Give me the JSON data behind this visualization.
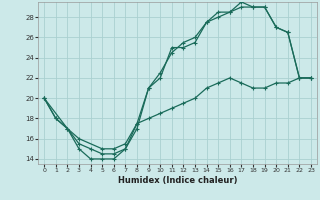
{
  "xlabel": "Humidex (Indice chaleur)",
  "bg_color": "#cce9e9",
  "grid_color": "#aad0d0",
  "line_color": "#1a6b5a",
  "xlim": [
    -0.5,
    23.5
  ],
  "ylim": [
    13.5,
    29.5
  ],
  "xticks": [
    0,
    1,
    2,
    3,
    4,
    5,
    6,
    7,
    8,
    9,
    10,
    11,
    12,
    13,
    14,
    15,
    16,
    17,
    18,
    19,
    20,
    21,
    22,
    23
  ],
  "yticks": [
    14,
    16,
    18,
    20,
    22,
    24,
    26,
    28
  ],
  "curve1_x": [
    0,
    1,
    2,
    3,
    4,
    5,
    6,
    7,
    8,
    9,
    10,
    11,
    12,
    13,
    14,
    15,
    16,
    17,
    18,
    19,
    20,
    21,
    22,
    23
  ],
  "curve1_y": [
    20,
    18,
    17,
    15,
    14,
    14,
    14,
    15,
    17,
    21,
    22,
    25,
    25,
    25.5,
    27.5,
    28.5,
    28.5,
    29.5,
    29,
    29,
    27,
    26.5,
    22,
    22
  ],
  "curve2_x": [
    0,
    3,
    4,
    5,
    6,
    7,
    8,
    9,
    10,
    11,
    12,
    13,
    14,
    15,
    16,
    17,
    18,
    19,
    20,
    21,
    22,
    23
  ],
  "curve2_y": [
    20,
    15.5,
    15,
    14.5,
    14.5,
    15,
    17.5,
    21,
    22.5,
    24.5,
    25.5,
    26,
    27.5,
    28,
    28.5,
    29,
    29,
    29,
    27,
    26.5,
    22,
    22
  ],
  "curve3_x": [
    0,
    1,
    2,
    3,
    5,
    6,
    7,
    8,
    9,
    10,
    11,
    12,
    13,
    14,
    15,
    16,
    17,
    18,
    19,
    20,
    21,
    22,
    23
  ],
  "curve3_y": [
    20,
    18,
    17,
    16,
    15,
    15,
    15.5,
    17.5,
    18,
    18.5,
    19,
    19.5,
    20,
    21,
    21.5,
    22,
    21.5,
    21,
    21,
    21.5,
    21.5,
    22,
    22
  ]
}
